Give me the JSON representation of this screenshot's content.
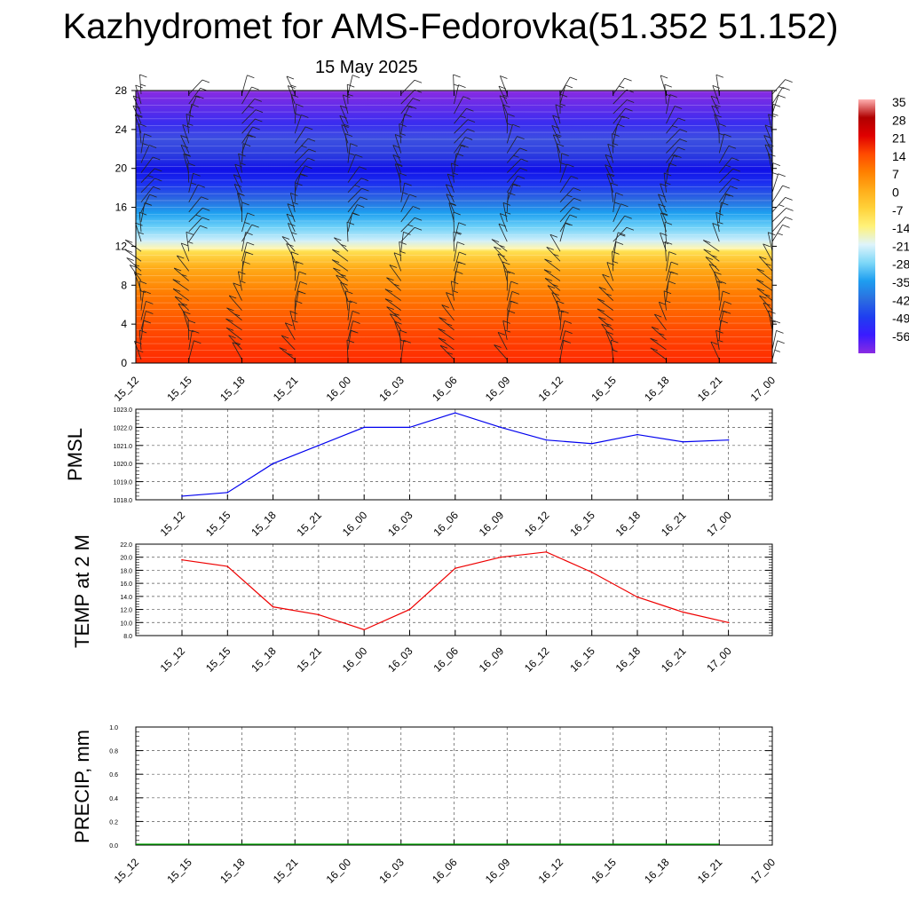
{
  "header": {
    "title": "Kazhydromet for AMS-Fedorovka(51.352 51.152)",
    "subtitle": "15 May 2025"
  },
  "time_labels": [
    "15_12",
    "15_15",
    "15_18",
    "15_21",
    "16_00",
    "16_03",
    "16_06",
    "16_09",
    "16_12",
    "16_15",
    "16_18",
    "16_21",
    "17_00"
  ],
  "chart_data": [
    {
      "id": "profile",
      "type": "heatmap",
      "title": "",
      "xlabel": "",
      "ylabel": "",
      "categories": [
        "15_12",
        "15_15",
        "15_18",
        "15_21",
        "16_00",
        "16_03",
        "16_06",
        "16_09",
        "16_12",
        "16_15",
        "16_18",
        "16_21",
        "17_00"
      ],
      "y_ticks": [
        "0",
        "4",
        "8",
        "12",
        "16",
        "20",
        "24",
        "28"
      ],
      "ylim": [
        0,
        28
      ],
      "temperature_levels": [
        {
          "level": 0,
          "temp": 17
        },
        {
          "level": 4,
          "temp": 10
        },
        {
          "level": 8,
          "temp": 3
        },
        {
          "level": 11.7,
          "temp": -7
        },
        {
          "level": 12.5,
          "temp": -18
        },
        {
          "level": 15,
          "temp": -38
        },
        {
          "level": 18,
          "temp": -52
        },
        {
          "level": 20,
          "temp": -55
        },
        {
          "level": 22.5,
          "temp": -50
        },
        {
          "level": 25,
          "temp": -53
        },
        {
          "level": 28,
          "temp": -57
        }
      ],
      "colorbar": {
        "labels": [
          "35",
          "28",
          "21",
          "14",
          "7",
          "0",
          "-7",
          "-14",
          "-21",
          "-28",
          "-35",
          "-42",
          "-49",
          "-56"
        ],
        "stops": [
          "#8a2be2",
          "#3a1bff",
          "#1f3ef0",
          "#2b6fe0",
          "#1e9ef0",
          "#7fd8f8",
          "#dff4fb",
          "#fff27a",
          "#ffd23a",
          "#ffad1a",
          "#ff8000",
          "#ff4a00",
          "#e00000",
          "#b00000",
          "#ffb0b0"
        ]
      },
      "wind_barbs": "shown"
    },
    {
      "id": "pmsl",
      "type": "line",
      "ylabel": "PMSL",
      "ylim": [
        1018,
        1023
      ],
      "y_ticks": [
        "1018.0",
        "1019.0",
        "1020.0",
        "1021.0",
        "1022.0",
        "1023.0"
      ],
      "x": [
        "15_12",
        "15_15",
        "15_18",
        "15_21",
        "16_00",
        "16_03",
        "16_06",
        "16_09",
        "16_12",
        "16_15",
        "16_18",
        "16_21",
        "17_00"
      ],
      "series": [
        {
          "values": [
            1018.2,
            1018.4,
            1020.0,
            1021.0,
            1022.0,
            1022.0,
            1022.8,
            1022.0,
            1021.3,
            1021.1,
            1021.6,
            1021.2,
            1021.3
          ],
          "color": "#0000ee"
        }
      ],
      "grid": true
    },
    {
      "id": "temp",
      "type": "line",
      "ylabel": "TEMP at 2 M",
      "ylim": [
        8,
        22
      ],
      "y_ticks": [
        "8.0",
        "10.0",
        "12.0",
        "14.0",
        "16.0",
        "18.0",
        "20.0",
        "22.0"
      ],
      "x": [
        "15_12",
        "15_15",
        "15_18",
        "15_21",
        "16_00",
        "16_03",
        "16_06",
        "16_09",
        "16_12",
        "16_15",
        "16_18",
        "16_21",
        "17_00"
      ],
      "series": [
        {
          "values": [
            19.6,
            18.6,
            12.4,
            11.2,
            8.9,
            12.0,
            18.3,
            20.0,
            20.8,
            17.7,
            13.9,
            11.6,
            10.0
          ],
          "color": "#ee0000"
        }
      ],
      "grid": true
    },
    {
      "id": "precip",
      "type": "line",
      "ylabel": "PRECIP, mm",
      "ylim": [
        0,
        1
      ],
      "y_ticks": [
        "0.0",
        "0.2",
        "0.4",
        "0.6",
        "0.8",
        "1.0"
      ],
      "x": [
        "15_12",
        "15_15",
        "15_18",
        "15_21",
        "16_00",
        "16_03",
        "16_06",
        "16_09",
        "16_12",
        "16_15",
        "16_18",
        "16_21",
        "17_00"
      ],
      "series": [
        {
          "values": [
            0,
            0,
            0,
            0,
            0,
            0,
            0,
            0,
            0,
            0,
            0,
            0,
            0
          ],
          "color": "#00aa00"
        }
      ],
      "grid": true
    }
  ]
}
